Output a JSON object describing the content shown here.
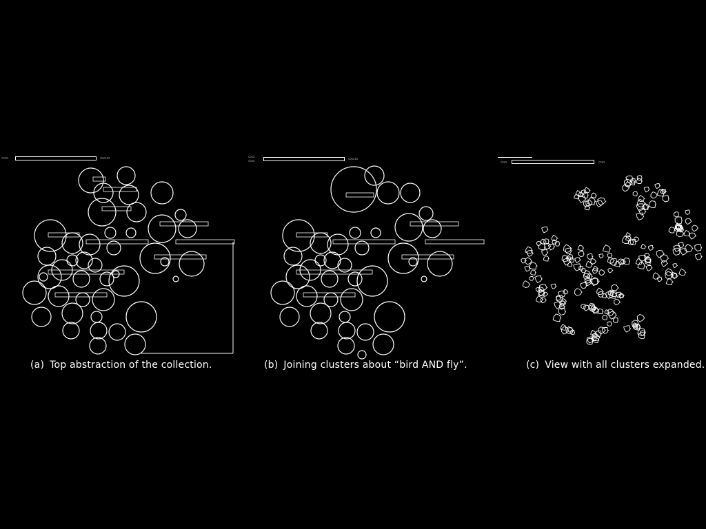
{
  "panels": [
    {
      "id": "a",
      "caption_label": "(a)",
      "caption_text": "Top abstraction of the collection."
    },
    {
      "id": "b",
      "caption_label": "(b)",
      "caption_text": "Joining clusters about “bird AND fly”."
    },
    {
      "id": "c",
      "caption_label": "(c)",
      "caption_text": "View with all clusters expanded."
    }
  ],
  "colors": {
    "background": "#000000",
    "foreground": "#ffffff"
  }
}
